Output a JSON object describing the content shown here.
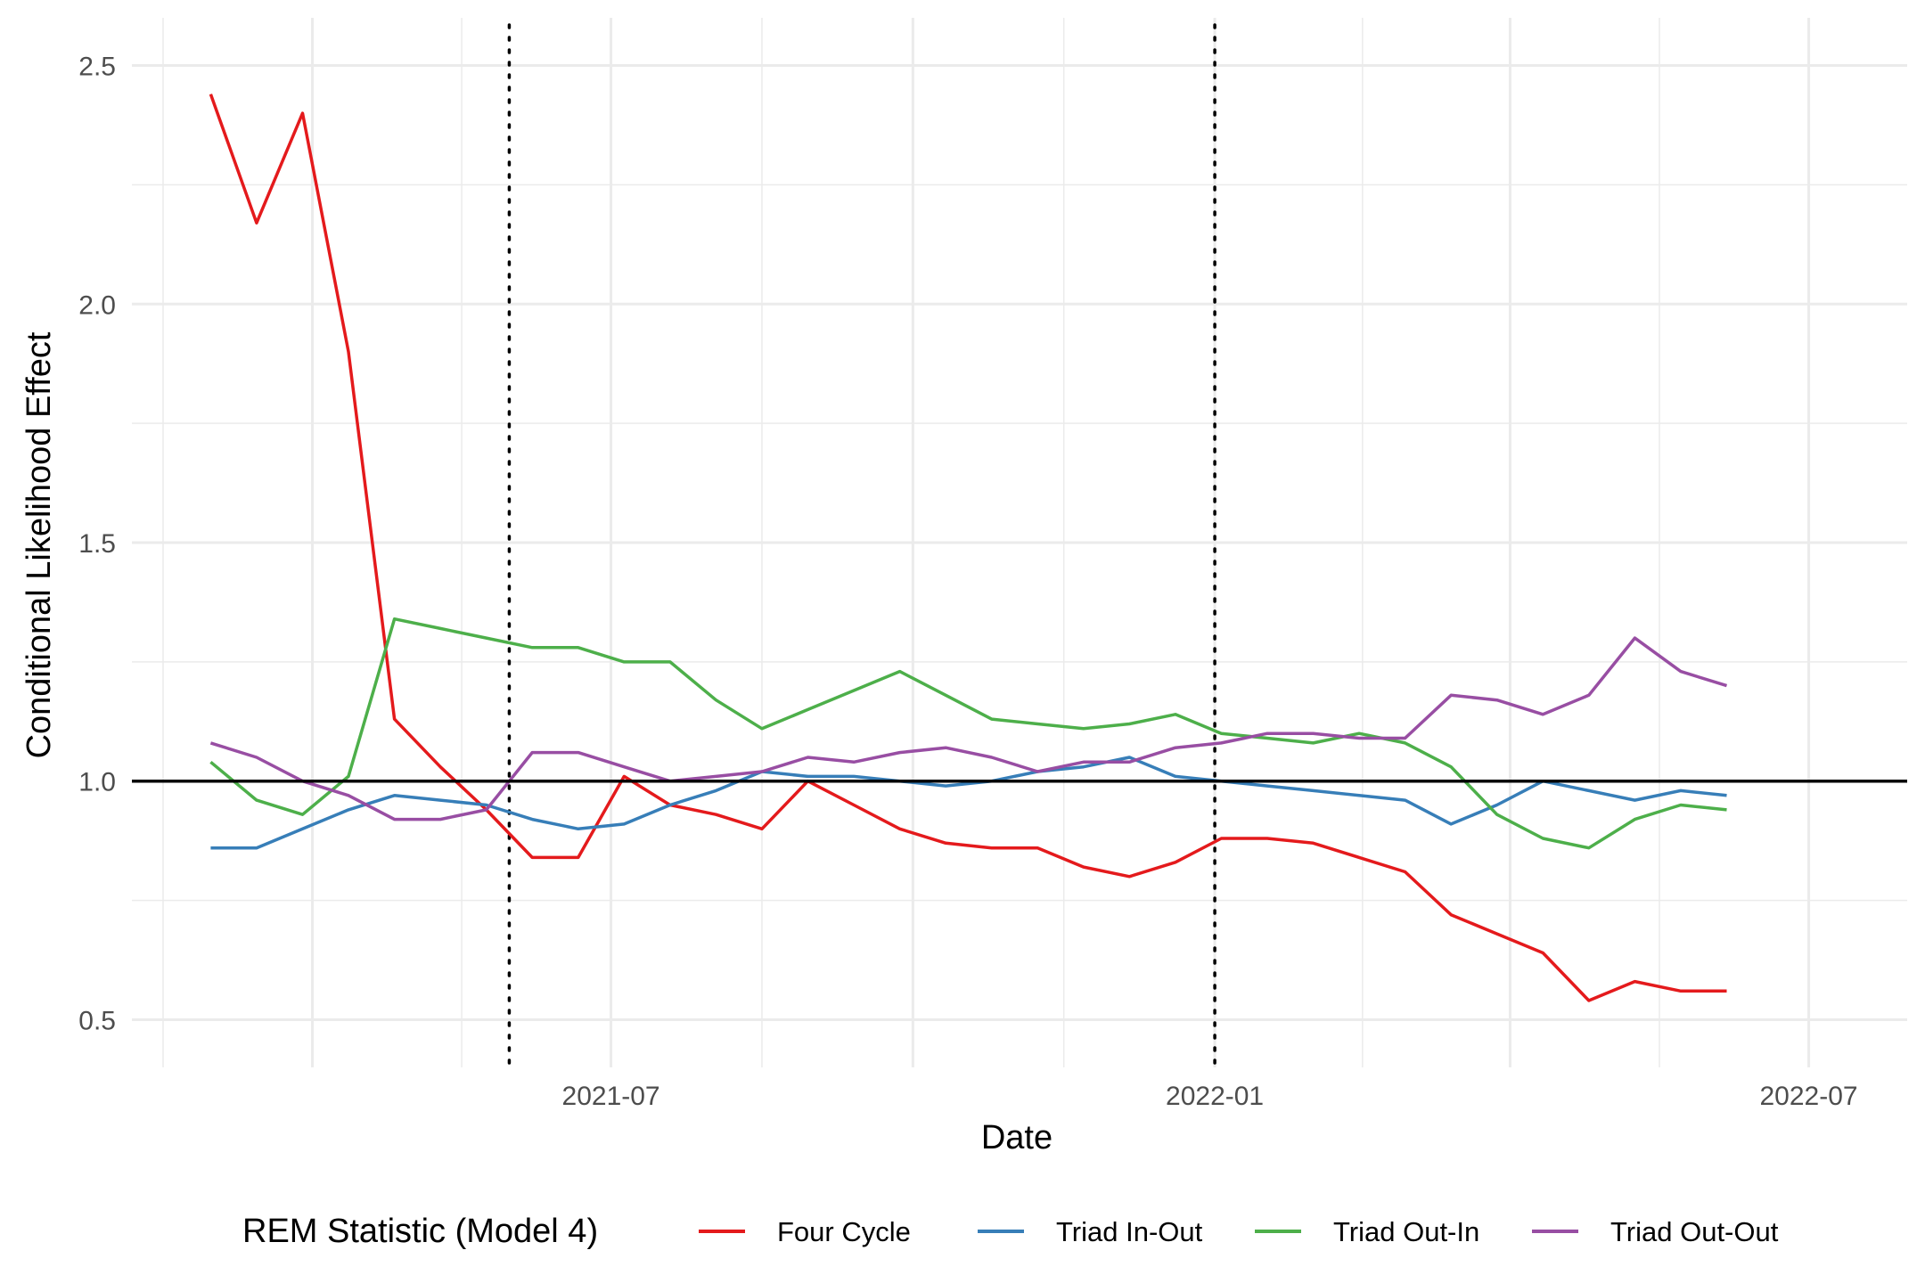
{
  "chart_data": {
    "type": "line",
    "title": "",
    "xlabel": "Date",
    "ylabel": "Conditional Likelihood Effect",
    "xlim": [
      "2021-02-05",
      "2022-07-31"
    ],
    "ylim": [
      0.4,
      2.6
    ],
    "grid": true,
    "x_major_ticks": [
      {
        "date": "2021-04-01",
        "label": ""
      },
      {
        "date": "2021-07-01",
        "label": "2021-07"
      },
      {
        "date": "2021-10-01",
        "label": ""
      },
      {
        "date": "2022-01-01",
        "label": "2022-01"
      },
      {
        "date": "2022-04-01",
        "label": ""
      },
      {
        "date": "2022-07-01",
        "label": "2022-07"
      }
    ],
    "y_major_ticks": [
      {
        "value": 0.5,
        "label": "0.5"
      },
      {
        "value": 1.0,
        "label": "1.0"
      },
      {
        "value": 1.5,
        "label": "1.5"
      },
      {
        "value": 2.0,
        "label": "2.0"
      },
      {
        "value": 2.5,
        "label": "2.5"
      }
    ],
    "y_minor_ticks": [
      0.75,
      1.25,
      1.75,
      2.25
    ],
    "reference_hline": 1.0,
    "reference_vlines": [
      "2021-05-31",
      "2022-01-01"
    ],
    "legend": {
      "title": "REM Statistic (Model 4)",
      "position": "bottom"
    },
    "x": [
      "2021-03-01",
      "2021-03-15",
      "2021-03-29",
      "2021-04-12",
      "2021-04-26",
      "2021-05-10",
      "2021-05-24",
      "2021-06-07",
      "2021-06-21",
      "2021-07-05",
      "2021-07-19",
      "2021-08-02",
      "2021-08-16",
      "2021-08-30",
      "2021-09-13",
      "2021-09-27",
      "2021-10-11",
      "2021-10-25",
      "2021-11-08",
      "2021-11-22",
      "2021-12-06",
      "2021-12-20",
      "2022-01-03",
      "2022-01-17",
      "2022-01-31",
      "2022-02-14",
      "2022-02-28",
      "2022-03-14",
      "2022-03-28",
      "2022-04-11",
      "2022-04-25",
      "2022-05-09",
      "2022-05-23",
      "2022-06-06"
    ],
    "series": [
      {
        "name": "Four Cycle",
        "color": "#e41a1c",
        "values": [
          2.44,
          2.17,
          2.4,
          1.9,
          1.13,
          1.03,
          0.94,
          0.84,
          0.84,
          1.01,
          0.95,
          0.93,
          0.9,
          1.0,
          0.95,
          0.9,
          0.87,
          0.86,
          0.86,
          0.82,
          0.8,
          0.83,
          0.88,
          0.88,
          0.87,
          0.84,
          0.81,
          0.72,
          0.68,
          0.64,
          0.54,
          0.58,
          0.56,
          0.56
        ]
      },
      {
        "name": "Triad In-Out",
        "color": "#377eb8",
        "values": [
          0.86,
          0.86,
          0.9,
          0.94,
          0.97,
          0.96,
          0.95,
          0.92,
          0.9,
          0.91,
          0.95,
          0.98,
          1.02,
          1.01,
          1.01,
          1.0,
          0.99,
          1.0,
          1.02,
          1.03,
          1.05,
          1.01,
          1.0,
          0.99,
          0.98,
          0.97,
          0.96,
          0.91,
          0.95,
          1.0,
          0.98,
          0.96,
          0.98,
          0.97
        ]
      },
      {
        "name": "Triad Out-In",
        "color": "#4daf4a",
        "values": [
          1.04,
          0.96,
          0.93,
          1.01,
          1.34,
          1.32,
          1.3,
          1.28,
          1.28,
          1.25,
          1.25,
          1.17,
          1.11,
          1.15,
          1.19,
          1.23,
          1.18,
          1.13,
          1.12,
          1.11,
          1.12,
          1.14,
          1.1,
          1.09,
          1.08,
          1.1,
          1.08,
          1.03,
          0.93,
          0.88,
          0.86,
          0.92,
          0.95,
          0.94
        ]
      },
      {
        "name": "Triad Out-Out",
        "color": "#984ea3",
        "values": [
          1.08,
          1.05,
          1.0,
          0.97,
          0.92,
          0.92,
          0.94,
          1.06,
          1.06,
          1.03,
          1.0,
          1.01,
          1.02,
          1.05,
          1.04,
          1.06,
          1.07,
          1.05,
          1.02,
          1.04,
          1.04,
          1.07,
          1.08,
          1.1,
          1.1,
          1.09,
          1.09,
          1.18,
          1.17,
          1.14,
          1.18,
          1.3,
          1.23,
          1.2
        ]
      }
    ]
  }
}
